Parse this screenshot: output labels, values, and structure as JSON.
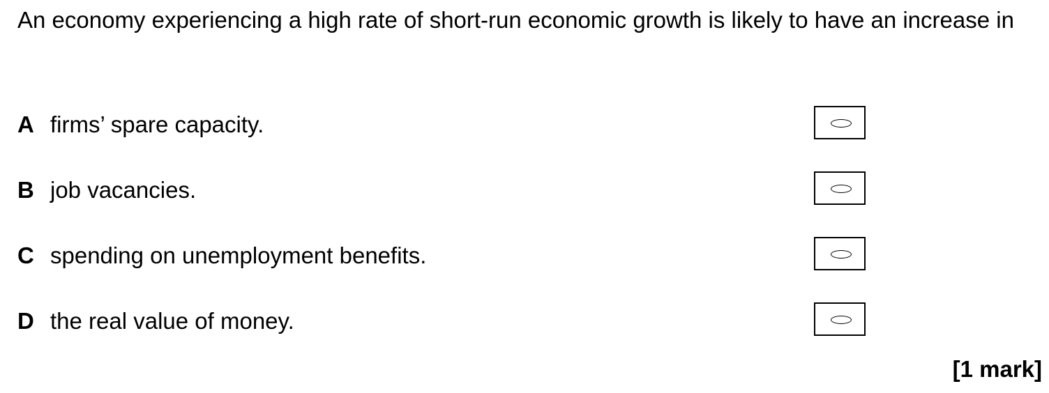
{
  "question": {
    "text": "An economy experiencing a high rate of short-run economic growth is likely to have an increase in"
  },
  "options": [
    {
      "letter": "A",
      "text": "firms’ spare capacity."
    },
    {
      "letter": "B",
      "text": "job vacancies."
    },
    {
      "letter": "C",
      "text": "spending on unemployment benefits."
    },
    {
      "letter": "D",
      "text": "the real value of money."
    }
  ],
  "marks": "[1 mark]"
}
